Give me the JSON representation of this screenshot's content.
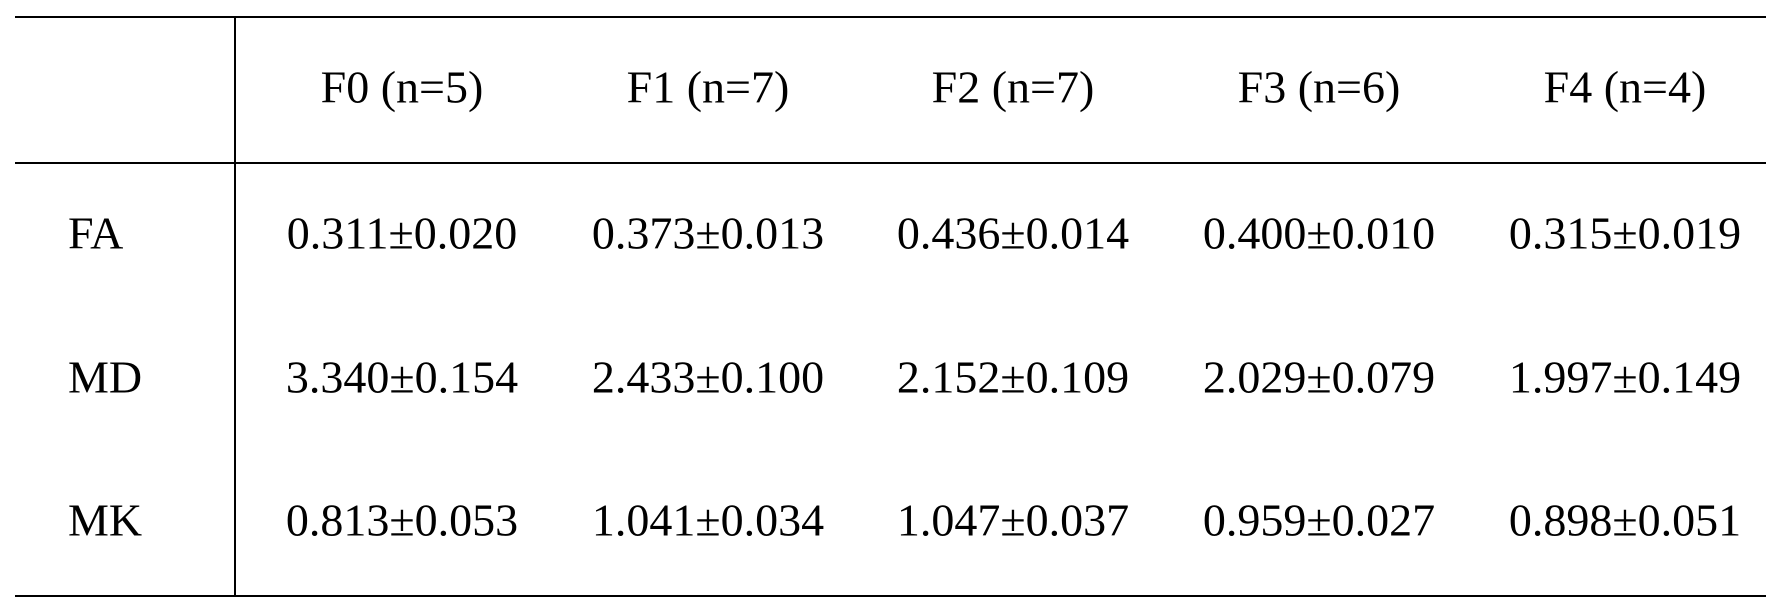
{
  "table": {
    "columns": [
      "F0 (n=5)",
      "F1 (n=7)",
      "F2 (n=7)",
      "F3 (n=6)",
      "F4 (n=4)"
    ],
    "rows": [
      {
        "label": "FA",
        "cells": [
          "0.311±0.020",
          "0.373±0.013",
          "0.436±0.014",
          "0.400±0.010",
          "0.315±0.019"
        ]
      },
      {
        "label": "MD",
        "cells": [
          "3.340±0.154",
          "2.433±0.100",
          "2.152±0.109",
          "2.029±0.079",
          "1.997±0.149"
        ]
      },
      {
        "label": "MK",
        "cells": [
          "0.813±0.053",
          "1.041±0.034",
          "1.047±0.037",
          "0.959±0.027",
          "0.898±0.051"
        ]
      }
    ]
  }
}
